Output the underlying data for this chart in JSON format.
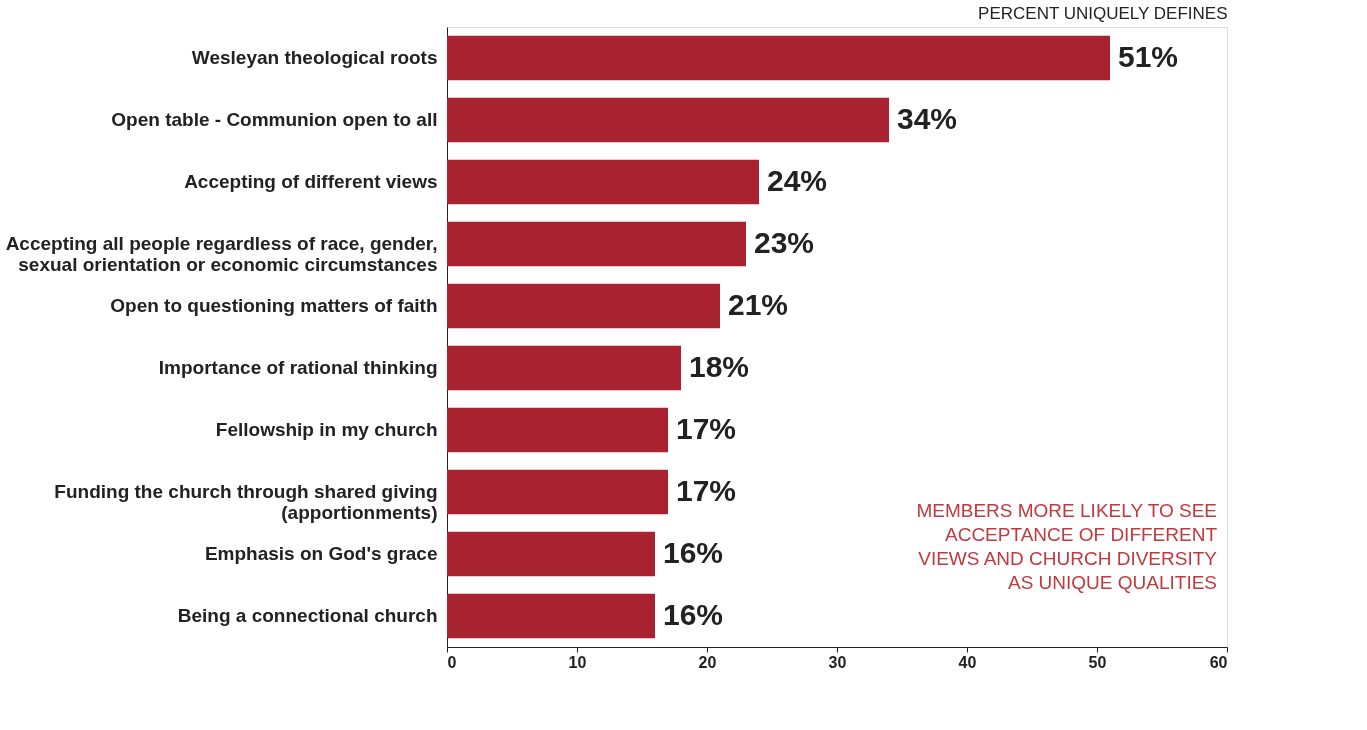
{
  "chart_data": {
    "type": "bar",
    "orientation": "horizontal",
    "title": "PERCENT UNIQUELY DEFINES",
    "categories": [
      "Wesleyan theological roots",
      "Open table - Communion open to all",
      "Accepting of different views",
      "Accepting all people regardless of race, gender, sexual orientation or economic circumstances",
      "Open to questioning matters of faith",
      "Importance of rational thinking",
      "Fellowship in my church",
      "Funding the church through shared giving (apportionments)",
      "Emphasis on God's grace",
      "Being a connectional church"
    ],
    "values": [
      51,
      34,
      24,
      23,
      21,
      18,
      17,
      17,
      16,
      16
    ],
    "value_labels": [
      "51%",
      "34%",
      "24%",
      "23%",
      "21%",
      "18%",
      "17%",
      "17%",
      "16%",
      "16%"
    ],
    "color": "#a8232f",
    "xlim": [
      0,
      60
    ],
    "xticks": [
      0,
      10,
      20,
      30,
      40,
      50,
      60
    ],
    "grid": false,
    "annotations": [
      "MEMBERS MORE LIKELY TO SEE ACCEPTANCE OF DIFFERENT VIEWS AND CHURCH DIVERSITY AS UNIQUE QUALITIES"
    ]
  }
}
